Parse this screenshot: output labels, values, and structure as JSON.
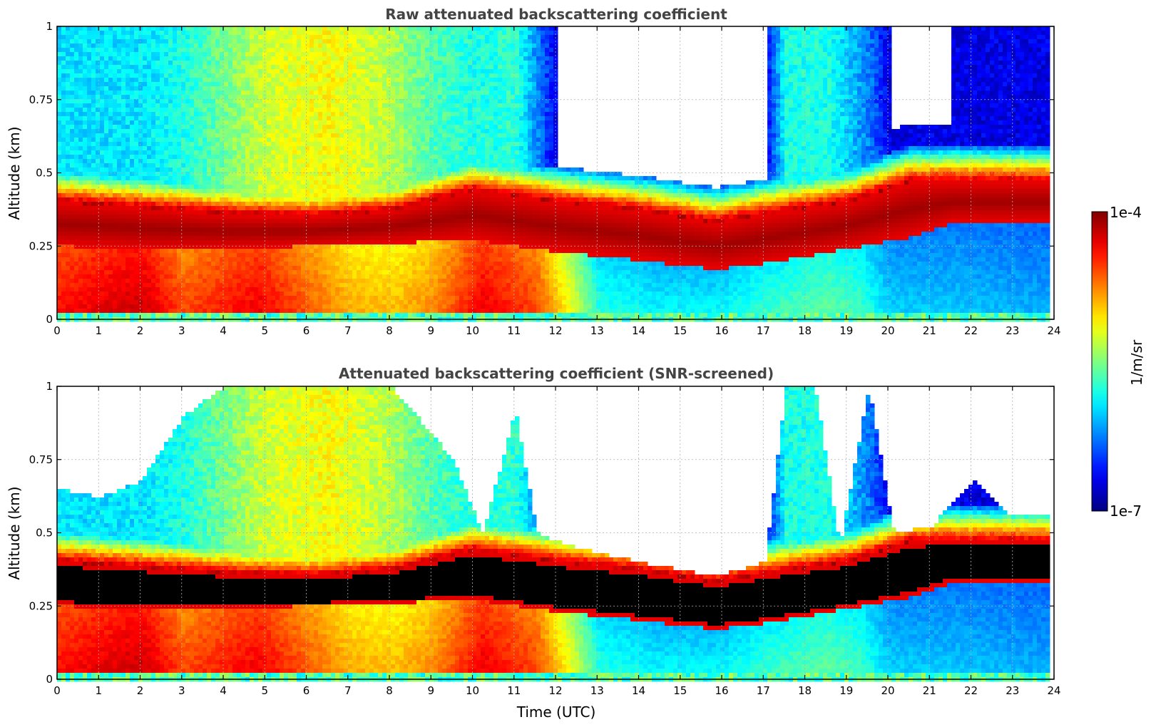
{
  "chart_data": [
    {
      "type": "heatmap",
      "title": "Raw attenuated backscattering coefficient",
      "xlabel": "",
      "ylabel": "Altitude (km)",
      "xlim": [
        0,
        24
      ],
      "ylim": [
        0,
        1
      ],
      "x_ticks": [
        "0",
        "1",
        "2",
        "3",
        "4",
        "5",
        "6",
        "7",
        "8",
        "9",
        "10",
        "11",
        "12",
        "13",
        "14",
        "15",
        "16",
        "17",
        "18",
        "19",
        "20",
        "21",
        "22",
        "23",
        "24"
      ],
      "y_ticks": [
        "0",
        "0.25",
        "0.5",
        "0.75",
        "1"
      ],
      "grid": true,
      "screening": "none",
      "layer_top_km": [
        [
          0,
          0.4
        ],
        [
          2,
          0.38
        ],
        [
          4,
          0.36
        ],
        [
          6,
          0.35
        ],
        [
          8,
          0.37
        ],
        [
          10,
          0.44
        ],
        [
          12,
          0.4
        ],
        [
          14,
          0.37
        ],
        [
          15.8,
          0.33
        ],
        [
          17,
          0.36
        ],
        [
          19,
          0.4
        ],
        [
          20.5,
          0.47
        ],
        [
          21.5,
          0.47
        ]
      ],
      "layer_base_km": [
        [
          0,
          0.25
        ],
        [
          2,
          0.24
        ],
        [
          4,
          0.24
        ],
        [
          6,
          0.25
        ],
        [
          8,
          0.26
        ],
        [
          10,
          0.27
        ],
        [
          12,
          0.23
        ],
        [
          14,
          0.2
        ],
        [
          15.8,
          0.17
        ],
        [
          17,
          0.19
        ],
        [
          19,
          0.24
        ],
        [
          20.5,
          0.28
        ],
        [
          21.5,
          0.33
        ]
      ]
    },
    {
      "type": "heatmap",
      "title": "Attenuated backscattering coefficient (SNR-screened)",
      "xlabel": "Time (UTC)",
      "ylabel": "Altitude (km)",
      "xlim": [
        0,
        24
      ],
      "ylim": [
        0,
        1
      ],
      "x_ticks": [
        "0",
        "1",
        "2",
        "3",
        "4",
        "5",
        "6",
        "7",
        "8",
        "9",
        "10",
        "11",
        "12",
        "13",
        "14",
        "15",
        "16",
        "17",
        "18",
        "19",
        "20",
        "21",
        "22",
        "23",
        "24"
      ],
      "y_ticks": [
        "0",
        "0.25",
        "0.5",
        "0.75",
        "1"
      ],
      "grid": true,
      "screening": "snr",
      "layer_top_km": [
        [
          0,
          0.4
        ],
        [
          2,
          0.38
        ],
        [
          4,
          0.36
        ],
        [
          6,
          0.35
        ],
        [
          8,
          0.37
        ],
        [
          10,
          0.44
        ],
        [
          12,
          0.4
        ],
        [
          14,
          0.37
        ],
        [
          15.8,
          0.33
        ],
        [
          17,
          0.36
        ],
        [
          19,
          0.4
        ],
        [
          20.5,
          0.47
        ],
        [
          21.5,
          0.47
        ]
      ],
      "layer_base_km": [
        [
          0,
          0.25
        ],
        [
          2,
          0.24
        ],
        [
          4,
          0.24
        ],
        [
          6,
          0.25
        ],
        [
          8,
          0.26
        ],
        [
          10,
          0.27
        ],
        [
          12,
          0.23
        ],
        [
          14,
          0.2
        ],
        [
          15.8,
          0.17
        ],
        [
          17,
          0.19
        ],
        [
          19,
          0.24
        ],
        [
          20.5,
          0.28
        ],
        [
          21.5,
          0.33
        ]
      ],
      "signal_top_km": [
        [
          0,
          0.65
        ],
        [
          1,
          0.62
        ],
        [
          2,
          0.68
        ],
        [
          3,
          0.9
        ],
        [
          4,
          1.0
        ],
        [
          8,
          1.0
        ],
        [
          9.5,
          0.75
        ],
        [
          10.2,
          0.5
        ],
        [
          11,
          0.92
        ],
        [
          11.5,
          0.5
        ],
        [
          12,
          0.47
        ],
        [
          13,
          0.43
        ],
        [
          14,
          0.4
        ],
        [
          15.8,
          0.35
        ],
        [
          17,
          0.4
        ],
        [
          17.5,
          1.0
        ],
        [
          18.2,
          1.0
        ],
        [
          18.8,
          0.45
        ],
        [
          19.5,
          1.0
        ],
        [
          20.1,
          0.5
        ],
        [
          21,
          0.52
        ],
        [
          22,
          0.68
        ],
        [
          22.8,
          0.57
        ],
        [
          23.8,
          0.56
        ]
      ]
    }
  ],
  "colorbar": {
    "label": "1/m/sr",
    "max_label": "1e-4",
    "min_label": "1e-7",
    "scale": "log",
    "range": [
      1e-07,
      0.0001
    ],
    "colormap": "jet"
  },
  "data_end_hour": 23.85
}
